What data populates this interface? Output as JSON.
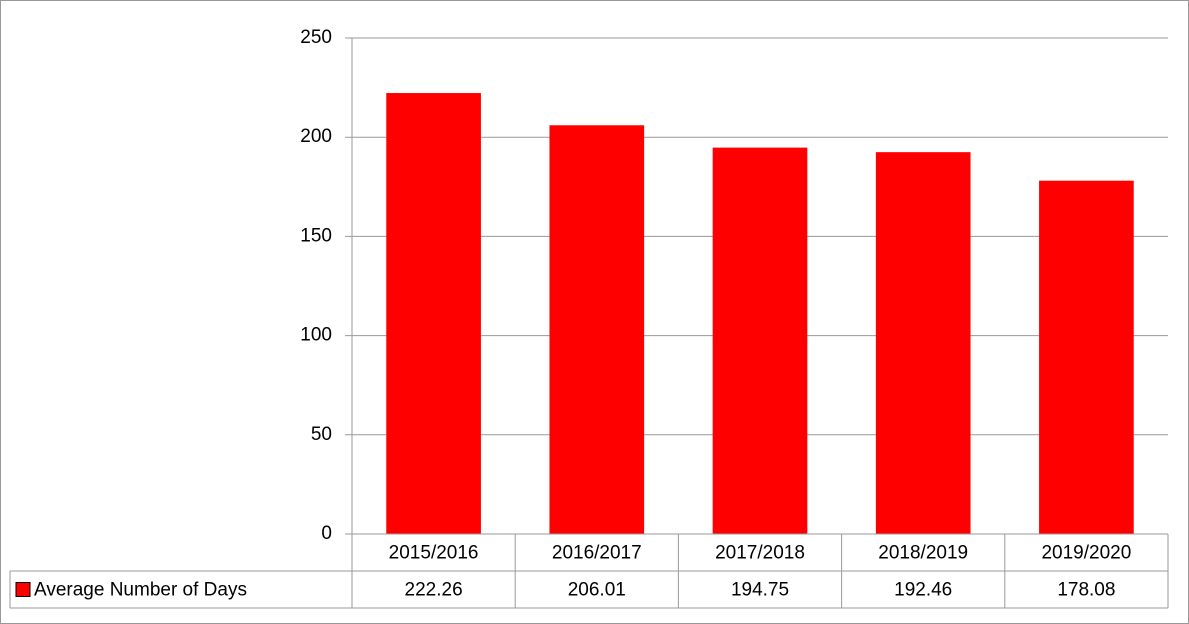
{
  "chart_data": {
    "type": "bar",
    "categories": [
      "2015/2016",
      "2016/2017",
      "2017/2018",
      "2018/2019",
      "2019/2020"
    ],
    "series": [
      {
        "name": "Average Number of Days",
        "color": "#ff0000",
        "values": [
          222.26,
          206.01,
          194.75,
          192.46,
          178.08
        ]
      }
    ],
    "ylim": [
      0,
      250
    ],
    "yticks": [
      0,
      50,
      100,
      150,
      200,
      250
    ],
    "grid": true,
    "data_table": true
  }
}
